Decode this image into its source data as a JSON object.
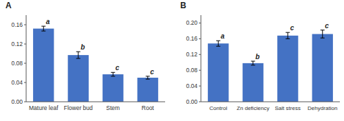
{
  "chart_data": [
    {
      "type": "bar",
      "title": "A",
      "categories": [
        "Mature leaf",
        "Flower bud",
        "Stem",
        "Root"
      ],
      "values": [
        0.152,
        0.097,
        0.057,
        0.05
      ],
      "errors": [
        0.005,
        0.007,
        0.004,
        0.003
      ],
      "annotations": [
        "a",
        "b",
        "c",
        "c"
      ],
      "color": "#4472C4",
      "ylim": [
        0,
        0.18
      ],
      "yticks": [
        {
          "value": 0,
          "label": "0.00"
        },
        0.04,
        0.08,
        0.12,
        0.16
      ],
      "grid": false
    },
    {
      "type": "bar",
      "title": "B",
      "categories": [
        "Control",
        "Zn deficiency",
        "Salt stress",
        "Dehydration"
      ],
      "values": [
        0.148,
        0.098,
        0.168,
        0.172
      ],
      "errors": [
        0.007,
        0.005,
        0.008,
        0.01
      ],
      "annotations": [
        "a",
        "b",
        "c",
        "c"
      ],
      "color": "#4472C4",
      "ylim": [
        0,
        0.22
      ],
      "yticks": [
        {
          "value": 0,
          "label": "0.00"
        },
        0.04,
        0.08,
        0.12,
        0.16,
        {
          "value": 0.2,
          "label": "0.20"
        }
      ],
      "grid": false
    }
  ]
}
